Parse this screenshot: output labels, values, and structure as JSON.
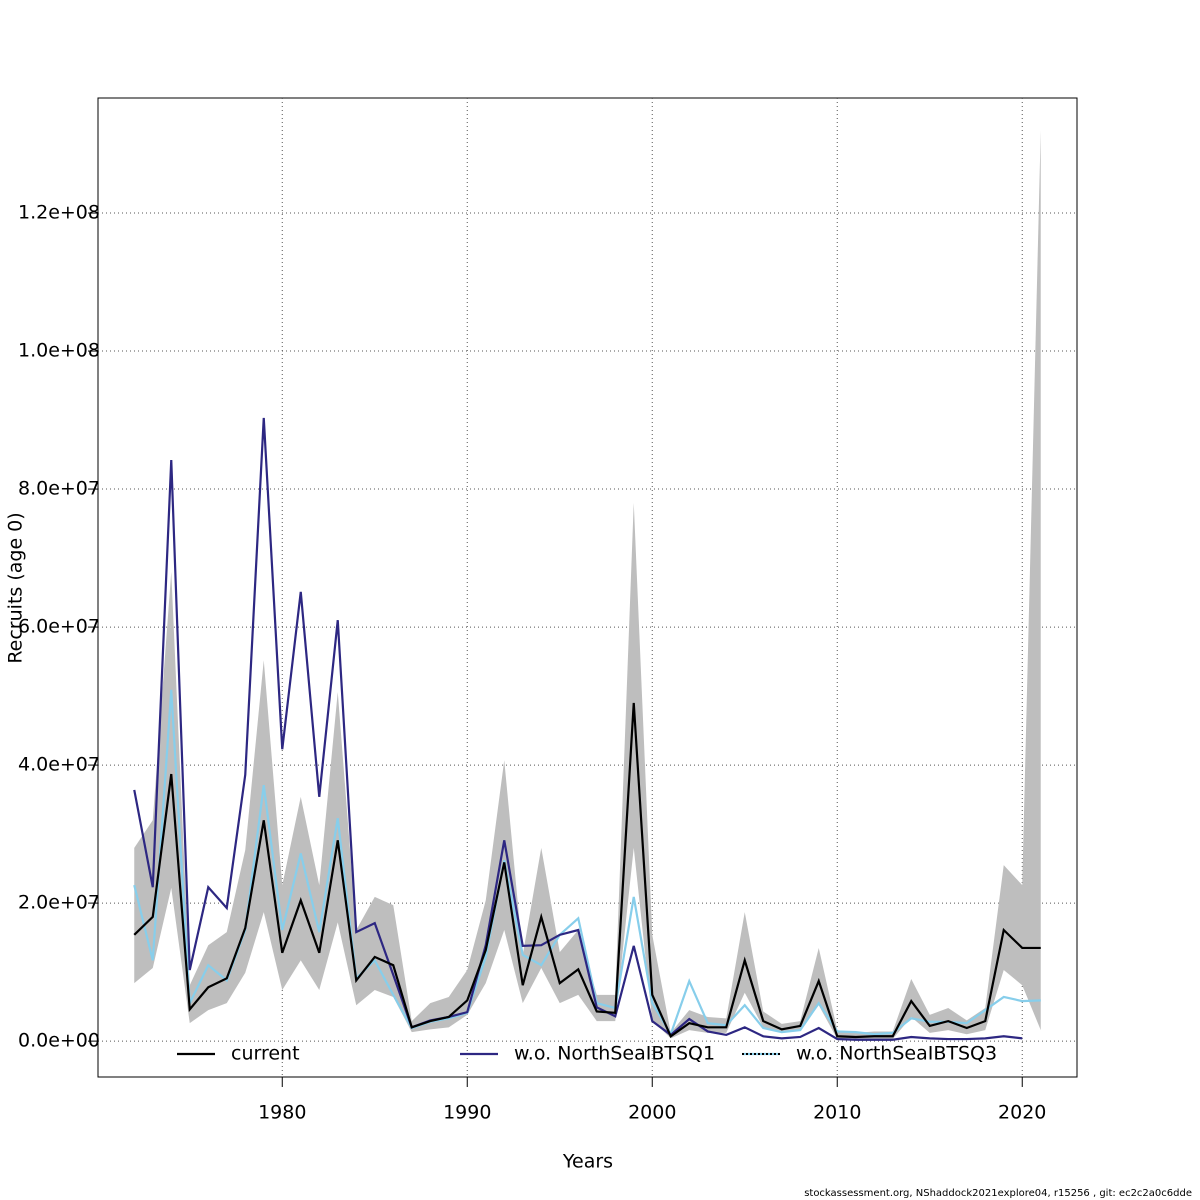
{
  "chart_data": {
    "type": "line",
    "xlabel": "Years",
    "ylabel": "Recruits (age 0)",
    "x": [
      1972,
      1973,
      1974,
      1975,
      1976,
      1977,
      1978,
      1979,
      1980,
      1981,
      1982,
      1983,
      1984,
      1985,
      1986,
      1987,
      1988,
      1989,
      1990,
      1991,
      1992,
      1993,
      1994,
      1995,
      1996,
      1997,
      1998,
      1999,
      2000,
      2001,
      2002,
      2003,
      2004,
      2005,
      2006,
      2007,
      2008,
      2009,
      2010,
      2011,
      2012,
      2013,
      2014,
      2015,
      2016,
      2017,
      2018,
      2019,
      2020,
      2021
    ],
    "interval": {
      "color": "#bebebe",
      "lower": [
        8400000,
        10600000,
        22200000,
        2600000,
        4500000,
        5500000,
        9900000,
        18700000,
        7400000,
        11700000,
        7400000,
        17200000,
        5200000,
        7400000,
        6400000,
        1300000,
        1700000,
        2000000,
        3800000,
        8400000,
        16100000,
        5500000,
        10600000,
        5500000,
        6700000,
        2900000,
        2900000,
        28000000,
        3000000,
        400000,
        1600000,
        1200000,
        1200000,
        7000000,
        2000000,
        1200000,
        1600000,
        5200000,
        300000,
        300000,
        300000,
        300000,
        3500000,
        1200000,
        1600000,
        1000000,
        1600000,
        10300000,
        8100000,
        1600000
      ],
      "upper": [
        28000000,
        32000000,
        68000000,
        8100000,
        13900000,
        15800000,
        27700000,
        55200000,
        22600000,
        35400000,
        22600000,
        50600000,
        16100000,
        20900000,
        19700000,
        2900000,
        5500000,
        6400000,
        10300000,
        20400000,
        40700000,
        12500000,
        28000000,
        12900000,
        16100000,
        6700000,
        6700000,
        78000000,
        15400000,
        1200000,
        4500000,
        3500000,
        3300000,
        18700000,
        4300000,
        2500000,
        2900000,
        13500000,
        1600000,
        1200000,
        1400000,
        1400000,
        9000000,
        3800000,
        4800000,
        3000000,
        4800000,
        25500000,
        22600000,
        132000000
      ]
    },
    "series": [
      {
        "name": "current",
        "color": "#000000",
        "values": [
          15400000,
          18000000,
          38700000,
          4600000,
          7800000,
          9100000,
          16400000,
          32000000,
          12800000,
          20400000,
          12800000,
          29100000,
          8800000,
          12200000,
          11000000,
          2000000,
          2900000,
          3500000,
          5900000,
          13200000,
          25900000,
          8100000,
          18000000,
          8400000,
          10400000,
          4300000,
          4100000,
          49000000,
          6700000,
          700000,
          2600000,
          2000000,
          2000000,
          11700000,
          2900000,
          1700000,
          2200000,
          8700000,
          700000,
          600000,
          700000,
          700000,
          5800000,
          2200000,
          2900000,
          1900000,
          2900000,
          16100000,
          13500000,
          13500000
        ]
      },
      {
        "name": "w.o. NorthSeaIBTSQ1",
        "color": "#2d2782",
        "values": [
          36400000,
          22300000,
          84200000,
          10300000,
          22300000,
          19300000,
          38600000,
          90300000,
          42300000,
          65100000,
          35400000,
          61000000,
          15800000,
          17100000,
          9600000,
          2000000,
          3000000,
          3500000,
          4200000,
          13900000,
          29100000,
          13800000,
          13900000,
          15400000,
          16100000,
          4900000,
          3600000,
          13800000,
          2900000,
          900000,
          3200000,
          1400000,
          900000,
          2000000,
          700000,
          400000,
          600000,
          1900000,
          300000,
          200000,
          200000,
          200000,
          600000,
          400000,
          300000,
          300000,
          400000,
          700000,
          400000,
          null
        ]
      },
      {
        "name": "w.o. NorthSeaIBTSQ3",
        "color": "#87ceeb",
        "values": [
          22600000,
          11700000,
          50900000,
          5500000,
          11000000,
          8800000,
          16100000,
          37100000,
          16100000,
          27200000,
          15800000,
          32300000,
          9100000,
          11700000,
          6700000,
          1900000,
          2800000,
          3300000,
          4100000,
          12200000,
          26200000,
          12500000,
          11000000,
          15400000,
          17800000,
          5500000,
          4800000,
          20900000,
          5500000,
          1000000,
          8700000,
          2600000,
          2300000,
          5200000,
          1900000,
          1300000,
          1600000,
          5500000,
          1400000,
          1300000,
          1000000,
          1200000,
          3300000,
          2800000,
          2800000,
          2600000,
          4500000,
          6400000,
          5800000,
          5900000
        ]
      }
    ],
    "xlim": [
      1970.04,
      2022.96
    ],
    "ylim": [
      -5200000,
      136670000
    ],
    "xticks": [
      1980,
      1990,
      2000,
      2010,
      2020
    ],
    "yticks": [
      {
        "value": 0,
        "label": "0.0e+00"
      },
      {
        "value": 20000000,
        "label": "2.0e+07"
      },
      {
        "value": 40000000,
        "label": "4.0e+07"
      },
      {
        "value": 60000000,
        "label": "6.0e+07"
      },
      {
        "value": 80000000,
        "label": "8.0e+07"
      },
      {
        "value": 100000000,
        "label": "1.0e+08"
      },
      {
        "value": 120000000,
        "label": "1.2e+08"
      }
    ],
    "grid": true,
    "legend": "bottom",
    "footer": "stockassessment.org, NShaddock2021explore04, r15256 , git: ec2c2a0c6dde"
  }
}
